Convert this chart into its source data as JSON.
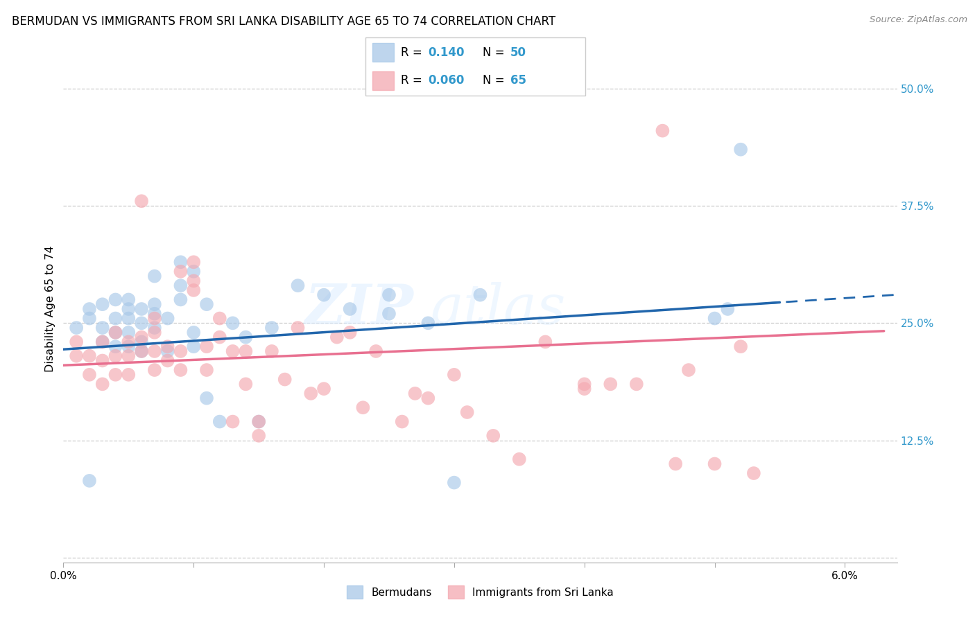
{
  "title": "BERMUDAN VS IMMIGRANTS FROM SRI LANKA DISABILITY AGE 65 TO 74 CORRELATION CHART",
  "source": "Source: ZipAtlas.com",
  "ylabel": "Disability Age 65 to 74",
  "legend_label_blue": "Bermudans",
  "legend_label_pink": "Immigrants from Sri Lanka",
  "R_blue": 0.14,
  "N_blue": 50,
  "R_pink": 0.06,
  "N_pink": 65,
  "blue_color": "#a8c8e8",
  "pink_color": "#f4a8b0",
  "line_blue_color": "#2166ac",
  "line_pink_color": "#e87090",
  "xlim": [
    0.0,
    0.064
  ],
  "ylim": [
    -0.005,
    0.535
  ],
  "blue_x": [
    0.001,
    0.002,
    0.002,
    0.003,
    0.003,
    0.003,
    0.004,
    0.004,
    0.004,
    0.004,
    0.005,
    0.005,
    0.005,
    0.005,
    0.005,
    0.006,
    0.006,
    0.006,
    0.006,
    0.007,
    0.007,
    0.007,
    0.007,
    0.008,
    0.008,
    0.009,
    0.009,
    0.009,
    0.01,
    0.01,
    0.01,
    0.011,
    0.012,
    0.013,
    0.014,
    0.015,
    0.016,
    0.018,
    0.02,
    0.022,
    0.025,
    0.025,
    0.028,
    0.03,
    0.032,
    0.05,
    0.051,
    0.052,
    0.002,
    0.011
  ],
  "blue_y": [
    0.245,
    0.255,
    0.265,
    0.23,
    0.245,
    0.27,
    0.225,
    0.24,
    0.255,
    0.275,
    0.225,
    0.24,
    0.255,
    0.265,
    0.275,
    0.22,
    0.23,
    0.25,
    0.265,
    0.245,
    0.26,
    0.27,
    0.3,
    0.22,
    0.255,
    0.275,
    0.29,
    0.315,
    0.225,
    0.24,
    0.305,
    0.27,
    0.145,
    0.25,
    0.235,
    0.145,
    0.245,
    0.29,
    0.28,
    0.265,
    0.26,
    0.28,
    0.25,
    0.08,
    0.28,
    0.255,
    0.265,
    0.435,
    0.082,
    0.17
  ],
  "pink_x": [
    0.001,
    0.001,
    0.002,
    0.002,
    0.003,
    0.003,
    0.003,
    0.004,
    0.004,
    0.004,
    0.005,
    0.005,
    0.005,
    0.006,
    0.006,
    0.006,
    0.007,
    0.007,
    0.007,
    0.007,
    0.008,
    0.008,
    0.009,
    0.009,
    0.009,
    0.01,
    0.01,
    0.01,
    0.011,
    0.011,
    0.012,
    0.012,
    0.013,
    0.013,
    0.014,
    0.014,
    0.015,
    0.015,
    0.016,
    0.017,
    0.018,
    0.019,
    0.02,
    0.021,
    0.022,
    0.023,
    0.024,
    0.026,
    0.027,
    0.028,
    0.03,
    0.031,
    0.033,
    0.035,
    0.037,
    0.04,
    0.04,
    0.042,
    0.044,
    0.046,
    0.048,
    0.05,
    0.052,
    0.053,
    0.047
  ],
  "pink_y": [
    0.215,
    0.23,
    0.195,
    0.215,
    0.185,
    0.21,
    0.23,
    0.195,
    0.215,
    0.24,
    0.195,
    0.215,
    0.23,
    0.22,
    0.235,
    0.38,
    0.2,
    0.22,
    0.24,
    0.255,
    0.21,
    0.225,
    0.2,
    0.22,
    0.305,
    0.285,
    0.295,
    0.315,
    0.2,
    0.225,
    0.235,
    0.255,
    0.22,
    0.145,
    0.185,
    0.22,
    0.13,
    0.145,
    0.22,
    0.19,
    0.245,
    0.175,
    0.18,
    0.235,
    0.24,
    0.16,
    0.22,
    0.145,
    0.175,
    0.17,
    0.195,
    0.155,
    0.13,
    0.105,
    0.23,
    0.18,
    0.185,
    0.185,
    0.185,
    0.455,
    0.2,
    0.1,
    0.225,
    0.09,
    0.1
  ]
}
